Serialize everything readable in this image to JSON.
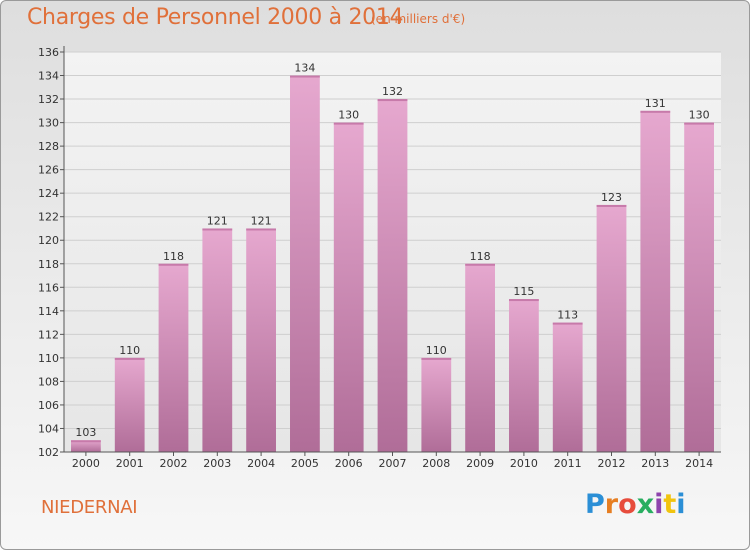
{
  "header": {
    "title": "Charges de Personnel 2000 à 2014",
    "unit": "(en milliers d'€)"
  },
  "footer": {
    "commune": "NIEDERNAI",
    "logo_text": "Proxiti",
    "logo_colors": [
      "#2b8fd6",
      "#e67e22",
      "#e74c3c",
      "#27ae60",
      "#8e44ad",
      "#f1c40f",
      "#2b8fd6"
    ]
  },
  "chart_data": {
    "type": "bar",
    "categories": [
      "2000",
      "2001",
      "2002",
      "2003",
      "2004",
      "2005",
      "2006",
      "2007",
      "2008",
      "2009",
      "2010",
      "2011",
      "2012",
      "2013",
      "2014"
    ],
    "values": [
      103,
      110,
      118,
      121,
      121,
      134,
      130,
      132,
      110,
      118,
      115,
      113,
      123,
      131,
      130
    ],
    "ylim": [
      102,
      136
    ],
    "yticks": [
      102,
      104,
      106,
      108,
      110,
      112,
      114,
      116,
      118,
      120,
      122,
      124,
      126,
      128,
      130,
      132,
      134,
      136
    ],
    "grid": true,
    "bar_color": "#d993bd"
  }
}
